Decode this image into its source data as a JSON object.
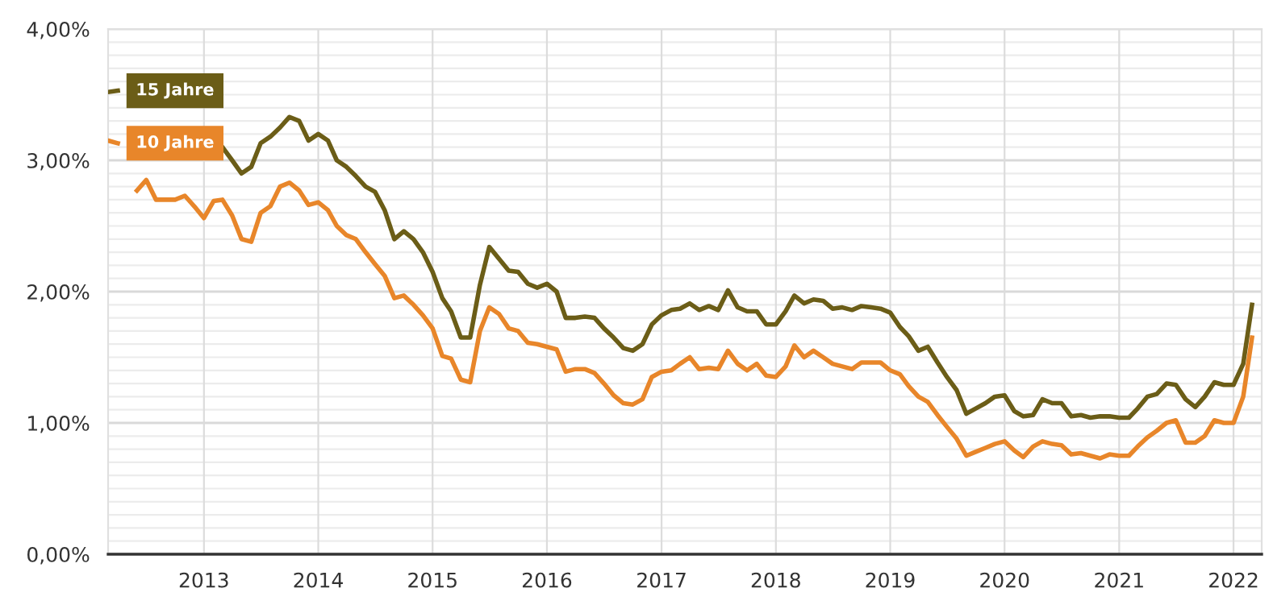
{
  "chart_data": {
    "type": "line",
    "x": [
      "2012-03",
      "2012-04",
      "2012-05",
      "2012-06",
      "2012-07",
      "2012-08",
      "2012-09",
      "2012-10",
      "2012-11",
      "2012-12",
      "2013-01",
      "2013-02",
      "2013-03",
      "2013-04",
      "2013-05",
      "2013-06",
      "2013-07",
      "2013-08",
      "2013-09",
      "2013-10",
      "2013-11",
      "2013-12",
      "2014-01",
      "2014-02",
      "2014-03",
      "2014-04",
      "2014-05",
      "2014-06",
      "2014-07",
      "2014-08",
      "2014-09",
      "2014-10",
      "2014-11",
      "2014-12",
      "2015-01",
      "2015-02",
      "2015-03",
      "2015-04",
      "2015-05",
      "2015-06",
      "2015-07",
      "2015-08",
      "2015-09",
      "2015-10",
      "2015-11",
      "2015-12",
      "2016-01",
      "2016-02",
      "2016-03",
      "2016-04",
      "2016-05",
      "2016-06",
      "2016-07",
      "2016-08",
      "2016-09",
      "2016-10",
      "2016-11",
      "2016-12",
      "2017-01",
      "2017-02",
      "2017-03",
      "2017-04",
      "2017-05",
      "2017-06",
      "2017-07",
      "2017-08",
      "2017-09",
      "2017-10",
      "2017-11",
      "2017-12",
      "2018-01",
      "2018-02",
      "2018-03",
      "2018-04",
      "2018-05",
      "2018-06",
      "2018-07",
      "2018-08",
      "2018-09",
      "2018-10",
      "2018-11",
      "2018-12",
      "2019-01",
      "2019-02",
      "2019-03",
      "2019-04",
      "2019-05",
      "2019-06",
      "2019-07",
      "2019-08",
      "2019-09",
      "2019-10",
      "2019-11",
      "2019-12",
      "2020-01",
      "2020-02",
      "2020-03",
      "2020-04",
      "2020-05",
      "2020-06",
      "2020-07",
      "2020-08",
      "2020-09",
      "2020-10",
      "2020-11",
      "2020-12",
      "2021-01",
      "2021-02",
      "2021-03",
      "2021-04",
      "2021-05",
      "2021-06",
      "2021-07",
      "2021-08",
      "2021-09",
      "2021-10",
      "2021-11",
      "2021-12",
      "2022-01",
      "2022-02",
      "2022-03"
    ],
    "series": [
      {
        "name": "15 Jahre",
        "color": "#6b5d17",
        "values": [
          3.52,
          3.53,
          null,
          null,
          null,
          null,
          null,
          null,
          null,
          null,
          null,
          null,
          3.1,
          3.0,
          2.9,
          2.95,
          3.13,
          3.18,
          3.25,
          3.33,
          3.3,
          3.15,
          3.2,
          3.15,
          3.0,
          2.95,
          2.88,
          2.8,
          2.76,
          2.62,
          2.4,
          2.46,
          2.4,
          2.3,
          2.15,
          1.95,
          1.85,
          1.65,
          1.65,
          2.05,
          2.34,
          2.25,
          2.16,
          2.15,
          2.06,
          2.03,
          2.06,
          2.0,
          1.8,
          1.8,
          1.81,
          1.8,
          1.72,
          1.65,
          1.57,
          1.55,
          1.6,
          1.75,
          1.82,
          1.86,
          1.87,
          1.91,
          1.86,
          1.89,
          1.86,
          2.01,
          1.88,
          1.85,
          1.85,
          1.75,
          1.75,
          1.85,
          1.97,
          1.91,
          1.94,
          1.93,
          1.87,
          1.88,
          1.86,
          1.89,
          1.88,
          1.87,
          1.84,
          1.73,
          1.66,
          1.55,
          1.58,
          1.46,
          1.35,
          1.25,
          1.07,
          1.11,
          1.15,
          1.2,
          1.21,
          1.09,
          1.05,
          1.06,
          1.18,
          1.15,
          1.15,
          1.05,
          1.06,
          1.04,
          1.05,
          1.05,
          1.04,
          1.04,
          1.11,
          1.2,
          1.22,
          1.3,
          1.29,
          1.18,
          1.12,
          1.2,
          1.31,
          1.29,
          1.29,
          1.45,
          1.9
        ]
      },
      {
        "name": "10 Jahre",
        "color": "#e8862a",
        "values": [
          3.15,
          3.13,
          null,
          2.77,
          2.85,
          2.7,
          2.7,
          2.7,
          2.73,
          2.65,
          2.56,
          2.69,
          2.7,
          2.58,
          2.4,
          2.38,
          2.6,
          2.65,
          2.8,
          2.83,
          2.77,
          2.66,
          2.68,
          2.62,
          2.5,
          2.43,
          2.4,
          2.3,
          2.21,
          2.12,
          1.95,
          1.97,
          1.9,
          1.82,
          1.72,
          1.51,
          1.49,
          1.33,
          1.31,
          1.7,
          1.88,
          1.83,
          1.72,
          1.7,
          1.61,
          1.6,
          1.58,
          1.56,
          1.39,
          1.41,
          1.41,
          1.38,
          1.3,
          1.21,
          1.15,
          1.14,
          1.18,
          1.35,
          1.39,
          1.4,
          1.45,
          1.5,
          1.41,
          1.42,
          1.41,
          1.55,
          1.45,
          1.4,
          1.45,
          1.36,
          1.35,
          1.43,
          1.59,
          1.5,
          1.55,
          1.5,
          1.45,
          1.43,
          1.41,
          1.46,
          1.46,
          1.46,
          1.4,
          1.37,
          1.28,
          1.2,
          1.16,
          1.06,
          0.97,
          0.88,
          0.75,
          0.78,
          0.81,
          0.84,
          0.86,
          0.79,
          0.74,
          0.82,
          0.86,
          0.84,
          0.83,
          0.76,
          0.77,
          0.75,
          0.73,
          0.76,
          0.75,
          0.75,
          0.82,
          0.89,
          0.94,
          1.0,
          1.02,
          0.85,
          0.85,
          0.9,
          1.02,
          1.0,
          1.0,
          1.2,
          1.65
        ]
      }
    ],
    "xlim": [
      "2012-03-01",
      "2022-04-01"
    ],
    "xticks": [
      {
        "value": "2013-01-01",
        "label": "2013"
      },
      {
        "value": "2014-01-01",
        "label": "2014"
      },
      {
        "value": "2015-01-01",
        "label": "2015"
      },
      {
        "value": "2016-01-01",
        "label": "2016"
      },
      {
        "value": "2017-01-01",
        "label": "2017"
      },
      {
        "value": "2018-01-01",
        "label": "2018"
      },
      {
        "value": "2019-01-01",
        "label": "2019"
      },
      {
        "value": "2020-01-01",
        "label": "2020"
      },
      {
        "value": "2021-01-01",
        "label": "2021"
      },
      {
        "value": "2022-01-01",
        "label": "2022"
      }
    ],
    "ylim": [
      0,
      4
    ],
    "yticks": [
      {
        "value": 0,
        "label": "0,00%"
      },
      {
        "value": 0.1,
        "label": null
      },
      {
        "value": 0.2,
        "label": null
      },
      {
        "value": 0.3,
        "label": null
      },
      {
        "value": 0.4,
        "label": null
      },
      {
        "value": 0.5,
        "label": null
      },
      {
        "value": 0.6,
        "label": null
      },
      {
        "value": 0.7,
        "label": null
      },
      {
        "value": 0.8,
        "label": null
      },
      {
        "value": 0.9,
        "label": null
      },
      {
        "value": 1,
        "label": "1,00%"
      },
      {
        "value": 1.1,
        "label": null
      },
      {
        "value": 1.2,
        "label": null
      },
      {
        "value": 1.3,
        "label": null
      },
      {
        "value": 1.4,
        "label": null
      },
      {
        "value": 1.5,
        "label": null
      },
      {
        "value": 1.6,
        "label": null
      },
      {
        "value": 1.7,
        "label": null
      },
      {
        "value": 1.8,
        "label": null
      },
      {
        "value": 1.9,
        "label": null
      },
      {
        "value": 2,
        "label": "2,00%"
      },
      {
        "value": 2.1,
        "label": null
      },
      {
        "value": 2.2,
        "label": null
      },
      {
        "value": 2.3,
        "label": null
      },
      {
        "value": 2.4,
        "label": null
      },
      {
        "value": 2.5,
        "label": null
      },
      {
        "value": 2.6,
        "label": null
      },
      {
        "value": 2.7,
        "label": null
      },
      {
        "value": 2.8,
        "label": null
      },
      {
        "value": 2.9,
        "label": null
      },
      {
        "value": 3,
        "label": "3,00%"
      },
      {
        "value": 3.1,
        "label": null
      },
      {
        "value": 3.2,
        "label": null
      },
      {
        "value": 3.3,
        "label": null
      },
      {
        "value": 3.4,
        "label": null
      },
      {
        "value": 3.5,
        "label": null
      },
      {
        "value": 3.6,
        "label": null
      },
      {
        "value": 3.7,
        "label": null
      },
      {
        "value": 3.8,
        "label": null
      },
      {
        "value": 3.9,
        "label": null
      },
      {
        "value": 4,
        "label": "4,00%"
      }
    ],
    "grid": true,
    "marker": "none",
    "line_style": "solid"
  }
}
